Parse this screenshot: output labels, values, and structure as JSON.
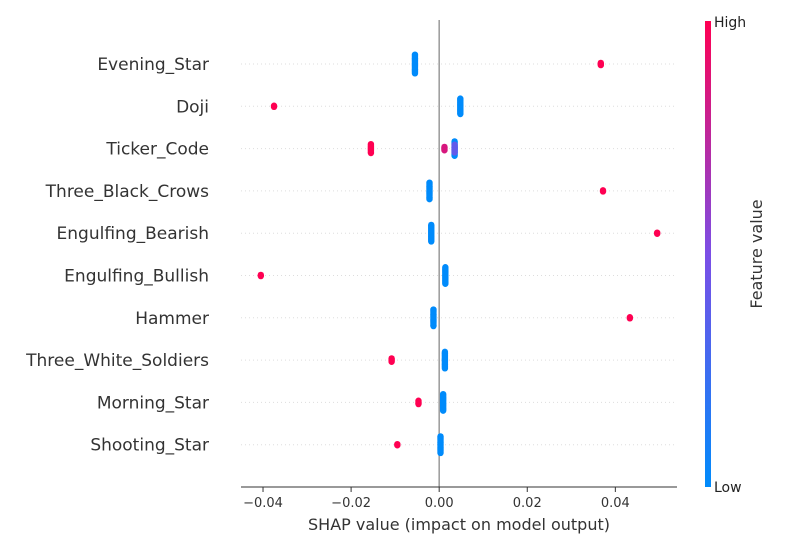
{
  "chart_data": {
    "type": "scatter",
    "subtype": "shap-beeswarm",
    "xlabel": "SHAP value (impact on model output)",
    "xlim": [
      -0.045,
      0.054
    ],
    "x_ticks": [
      -0.04,
      -0.02,
      0.0,
      0.02,
      0.04
    ],
    "x_tick_labels": [
      "−0.04",
      "−0.02",
      "0.00",
      "0.02",
      "0.04"
    ],
    "features": [
      {
        "name": "Evening_Star",
        "points": [
          {
            "x": -0.0055,
            "v": 0.0,
            "n": 18
          },
          {
            "x": 0.0367,
            "v": 1.0,
            "n": 3
          }
        ]
      },
      {
        "name": "Doji",
        "points": [
          {
            "x": 0.0048,
            "v": 0.0,
            "n": 15
          },
          {
            "x": -0.0375,
            "v": 1.0,
            "n": 2
          }
        ]
      },
      {
        "name": "Ticker_Code",
        "points": [
          {
            "x": 0.0035,
            "v": 0.0,
            "n": 14
          },
          {
            "x": 0.0035,
            "v": 0.4,
            "n": 8
          },
          {
            "x": 0.0012,
            "v": 0.85,
            "n": 4
          },
          {
            "x": -0.0155,
            "v": 1.0,
            "n": 9
          }
        ]
      },
      {
        "name": "Three_Black_Crows",
        "points": [
          {
            "x": -0.0022,
            "v": 0.0,
            "n": 16
          },
          {
            "x": 0.0372,
            "v": 1.0,
            "n": 2
          }
        ]
      },
      {
        "name": "Engulfing_Bearish",
        "points": [
          {
            "x": -0.0018,
            "v": 0.0,
            "n": 16
          },
          {
            "x": 0.0495,
            "v": 1.0,
            "n": 2
          }
        ]
      },
      {
        "name": "Engulfing_Bullish",
        "points": [
          {
            "x": 0.0014,
            "v": 0.0,
            "n": 16
          },
          {
            "x": -0.0405,
            "v": 1.0,
            "n": 2
          }
        ]
      },
      {
        "name": "Hammer",
        "points": [
          {
            "x": -0.0013,
            "v": 0.0,
            "n": 16
          },
          {
            "x": 0.0433,
            "v": 1.0,
            "n": 2
          }
        ]
      },
      {
        "name": "Three_White_Soldiers",
        "points": [
          {
            "x": 0.0013,
            "v": 0.0,
            "n": 16
          },
          {
            "x": -0.0108,
            "v": 1.0,
            "n": 4
          }
        ]
      },
      {
        "name": "Morning_Star",
        "points": [
          {
            "x": 0.0009,
            "v": 0.0,
            "n": 16
          },
          {
            "x": -0.0047,
            "v": 1.0,
            "n": 4
          }
        ]
      },
      {
        "name": "Shooting_Star",
        "points": [
          {
            "x": 0.0003,
            "v": 0.0,
            "n": 16
          },
          {
            "x": -0.0095,
            "v": 1.0,
            "n": 2
          }
        ]
      }
    ],
    "colorbar": {
      "label": "Feature value",
      "high_label": "High",
      "low_label": "Low"
    },
    "colors": {
      "low": "#008bfb",
      "mid": "#7b4ee6",
      "high": "#ff0052",
      "zero_line": "#999999",
      "grid": "#dddddd"
    }
  }
}
